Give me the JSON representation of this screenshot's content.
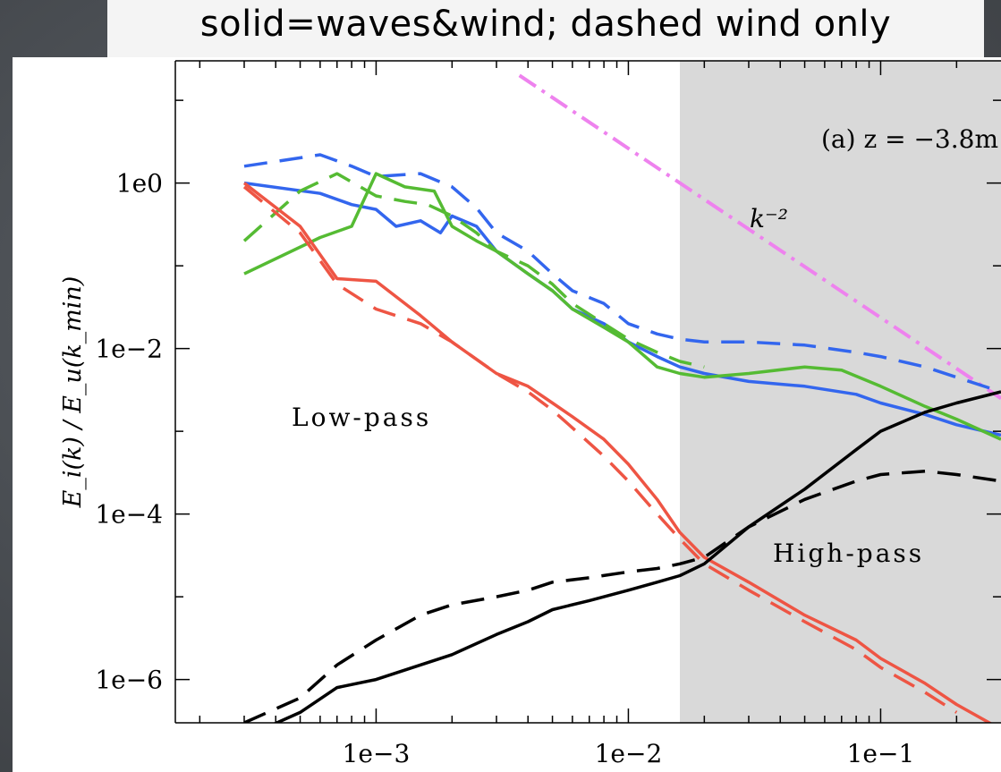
{
  "banner": "solid=waves&wind; dashed wind only",
  "chart_data": {
    "type": "line",
    "title": "",
    "xlabel": "",
    "ylabel": "E_i(k) / E_u(k_min)",
    "xscale": "log",
    "yscale": "log",
    "xlim": [
      0.00016,
      0.3
    ],
    "ylim": [
      3e-07,
      30
    ],
    "xticks": [
      0.001,
      0.01,
      0.1
    ],
    "xtick_labels": [
      "1e−3",
      "1e−2",
      "1e−1"
    ],
    "yticks": [
      1,
      0.01,
      0.0001,
      1e-06
    ],
    "ytick_labels": [
      "1e0",
      "1e−2",
      "1e−4",
      "1e−6"
    ],
    "grid": false,
    "panel_label": "(a) z = −3.8m",
    "reference_line": {
      "label": "k⁻²",
      "color": "#ee82ee",
      "x": [
        0.0037,
        0.3
      ],
      "y": [
        20,
        0.0025
      ]
    },
    "regions": [
      {
        "label": "Low-pass"
      },
      {
        "label": "High-pass",
        "x_start": 0.016,
        "color": "#d9d9d9"
      }
    ],
    "series": [
      {
        "color": "#3366ee",
        "style": "solid",
        "x": [
          0.0003,
          0.0006,
          0.0008,
          0.001,
          0.0012,
          0.0015,
          0.0018,
          0.002,
          0.0025,
          0.003,
          0.004,
          0.005,
          0.006,
          0.008,
          0.01,
          0.013,
          0.016,
          0.02,
          0.03,
          0.05,
          0.08,
          0.1,
          0.15,
          0.2,
          0.3
        ],
        "y": [
          1.0,
          0.75,
          0.55,
          0.48,
          0.3,
          0.35,
          0.25,
          0.4,
          0.3,
          0.15,
          0.08,
          0.05,
          0.03,
          0.02,
          0.012,
          0.008,
          0.006,
          0.005,
          0.004,
          0.0035,
          0.0028,
          0.0022,
          0.0016,
          0.0012,
          0.0009
        ]
      },
      {
        "color": "#3366ee",
        "style": "dashed",
        "x": [
          0.0003,
          0.0006,
          0.0008,
          0.001,
          0.0015,
          0.002,
          0.0025,
          0.003,
          0.004,
          0.005,
          0.006,
          0.008,
          0.01,
          0.013,
          0.016,
          0.02,
          0.03,
          0.05,
          0.08,
          0.1,
          0.15,
          0.2,
          0.3
        ],
        "y": [
          1.6,
          2.2,
          1.6,
          1.2,
          1.3,
          0.9,
          0.5,
          0.25,
          0.15,
          0.08,
          0.05,
          0.035,
          0.02,
          0.015,
          0.013,
          0.012,
          0.012,
          0.011,
          0.009,
          0.008,
          0.006,
          0.0045,
          0.003
        ]
      },
      {
        "color": "#55bb33",
        "style": "solid",
        "x": [
          0.0003,
          0.0006,
          0.0008,
          0.001,
          0.0013,
          0.0017,
          0.002,
          0.0025,
          0.003,
          0.004,
          0.005,
          0.006,
          0.008,
          0.01,
          0.013,
          0.016,
          0.02,
          0.03,
          0.05,
          0.07,
          0.1,
          0.15,
          0.2,
          0.3
        ],
        "y": [
          0.08,
          0.22,
          0.3,
          1.3,
          0.9,
          0.8,
          0.3,
          0.2,
          0.15,
          0.08,
          0.05,
          0.03,
          0.018,
          0.012,
          0.006,
          0.005,
          0.0045,
          0.005,
          0.006,
          0.0055,
          0.0035,
          0.002,
          0.0014,
          0.0008
        ]
      },
      {
        "color": "#55bb33",
        "style": "dashed",
        "x": [
          0.0003,
          0.0005,
          0.0007,
          0.001,
          0.0013,
          0.0016,
          0.002,
          0.0025,
          0.003,
          0.004,
          0.005,
          0.006,
          0.008,
          0.01,
          0.013,
          0.016,
          0.02
        ],
        "y": [
          0.2,
          0.8,
          1.3,
          0.7,
          0.6,
          0.55,
          0.4,
          0.25,
          0.15,
          0.1,
          0.06,
          0.035,
          0.02,
          0.013,
          0.009,
          0.007,
          0.006
        ]
      },
      {
        "color": "#ee5544",
        "style": "solid",
        "x": [
          0.0003,
          0.0005,
          0.0007,
          0.001,
          0.0015,
          0.002,
          0.003,
          0.004,
          0.005,
          0.006,
          0.008,
          0.01,
          0.013,
          0.016,
          0.02,
          0.03,
          0.05,
          0.08,
          0.1,
          0.15,
          0.2,
          0.3
        ],
        "y": [
          1.0,
          0.3,
          0.07,
          0.065,
          0.025,
          0.012,
          0.005,
          0.0035,
          0.0022,
          0.0015,
          0.0008,
          0.0004,
          0.00015,
          6e-05,
          3e-05,
          1.5e-05,
          6e-06,
          3e-06,
          1.8e-06,
          9e-07,
          5e-07,
          2.5e-07
        ]
      },
      {
        "color": "#ee5544",
        "style": "dashed",
        "x": [
          0.0003,
          0.0005,
          0.0007,
          0.001,
          0.0015,
          0.002,
          0.003,
          0.004,
          0.005,
          0.006,
          0.008,
          0.01,
          0.013,
          0.016,
          0.02,
          0.03,
          0.05,
          0.08,
          0.1,
          0.15,
          0.2
        ],
        "y": [
          0.9,
          0.25,
          0.06,
          0.03,
          0.02,
          0.012,
          0.005,
          0.003,
          0.0018,
          0.0011,
          0.0005,
          0.00025,
          0.0001,
          5e-05,
          2.5e-05,
          1.2e-05,
          5e-06,
          2.3e-06,
          1.4e-06,
          7e-07,
          4e-07
        ]
      },
      {
        "color": "#000000",
        "style": "solid",
        "x": [
          0.0003,
          0.0005,
          0.0007,
          0.001,
          0.0015,
          0.002,
          0.003,
          0.004,
          0.005,
          0.007,
          0.01,
          0.013,
          0.016,
          0.02,
          0.03,
          0.05,
          0.08,
          0.1,
          0.15,
          0.2,
          0.3
        ],
        "y": [
          2e-07,
          4e-07,
          8e-07,
          1e-06,
          1.5e-06,
          2e-06,
          3.5e-06,
          5e-06,
          7e-06,
          9e-06,
          1.2e-05,
          1.5e-05,
          1.8e-05,
          2.5e-05,
          7e-05,
          0.0002,
          0.0006,
          0.001,
          0.0017,
          0.0022,
          0.003
        ]
      },
      {
        "color": "#000000",
        "style": "dashed",
        "x": [
          0.0003,
          0.0005,
          0.0007,
          0.001,
          0.0015,
          0.002,
          0.003,
          0.004,
          0.005,
          0.007,
          0.01,
          0.013,
          0.016,
          0.02,
          0.03,
          0.05,
          0.08,
          0.1,
          0.15,
          0.2,
          0.3
        ],
        "y": [
          3e-07,
          6e-07,
          1.5e-06,
          3e-06,
          6e-06,
          8e-06,
          1e-05,
          1.2e-05,
          1.5e-05,
          1.7e-05,
          2e-05,
          2.2e-05,
          2.5e-05,
          3e-05,
          7e-05,
          0.00015,
          0.00025,
          0.0003,
          0.00033,
          0.0003,
          0.00025
        ]
      }
    ]
  }
}
